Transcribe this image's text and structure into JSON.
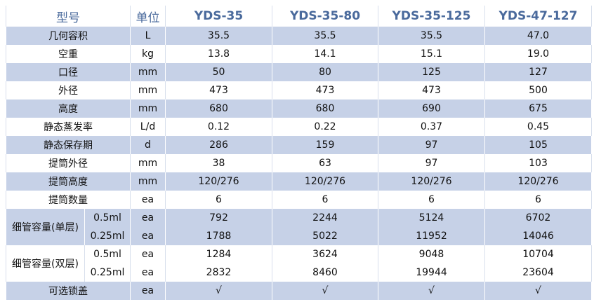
{
  "table": {
    "header": [
      "型号",
      "单位",
      "YDS-35",
      "YDS-35-80",
      "YDS-35-125",
      "YDS-47-127"
    ],
    "rows": [
      {
        "label": "几何容积",
        "unit": "L",
        "values": [
          "35.5",
          "35.5",
          "35.5",
          "47.0"
        ]
      },
      {
        "label": "空重",
        "unit": "kg",
        "values": [
          "13.8",
          "14.1",
          "15.1",
          "19.0"
        ]
      },
      {
        "label": "口径",
        "unit": "mm",
        "values": [
          "50",
          "80",
          "125",
          "127"
        ]
      },
      {
        "label": "外径",
        "unit": "mm",
        "values": [
          "473",
          "473",
          "473",
          "500"
        ]
      },
      {
        "label": "高度",
        "unit": "mm",
        "values": [
          "680",
          "680",
          "690",
          "675"
        ]
      },
      {
        "label": "静态蒸发率",
        "unit": "L/d",
        "values": [
          "0.12",
          "0.22",
          "0.37",
          "0.45"
        ]
      },
      {
        "label": "静态保存期",
        "unit": "d",
        "values": [
          "286",
          "159",
          "97",
          "105"
        ]
      },
      {
        "label": "提筒外径",
        "unit": "mm",
        "values": [
          "38",
          "63",
          "97",
          "103"
        ]
      },
      {
        "label": "提筒高度",
        "unit": "mm",
        "values": [
          "120/276",
          "120/276",
          "120/276",
          "120/276"
        ]
      },
      {
        "label": "提筒数量",
        "unit": "ea",
        "values": [
          "6",
          "6",
          "6",
          "6"
        ]
      },
      {
        "label": "细管容量(单层)",
        "subrows": [
          {
            "sublabel": "0.5ml",
            "unit": "ea",
            "values": [
              "792",
              "2244",
              "5124",
              "6702"
            ]
          },
          {
            "sublabel": "0.25ml",
            "unit": "ea",
            "values": [
              "1788",
              "5022",
              "11952",
              "14046"
            ]
          }
        ]
      },
      {
        "label": "细管容量(双层)",
        "subrows": [
          {
            "sublabel": "0.5ml",
            "unit": "ea",
            "values": [
              "1284",
              "3624",
              "9048",
              "10704"
            ]
          },
          {
            "sublabel": "0.25ml",
            "unit": "ea",
            "values": [
              "2832",
              "8460",
              "19944",
              "23604"
            ]
          }
        ]
      },
      {
        "label": "可选锁盖",
        "unit": "ea",
        "values": [
          "√",
          "√",
          "√",
          "√"
        ]
      }
    ]
  }
}
